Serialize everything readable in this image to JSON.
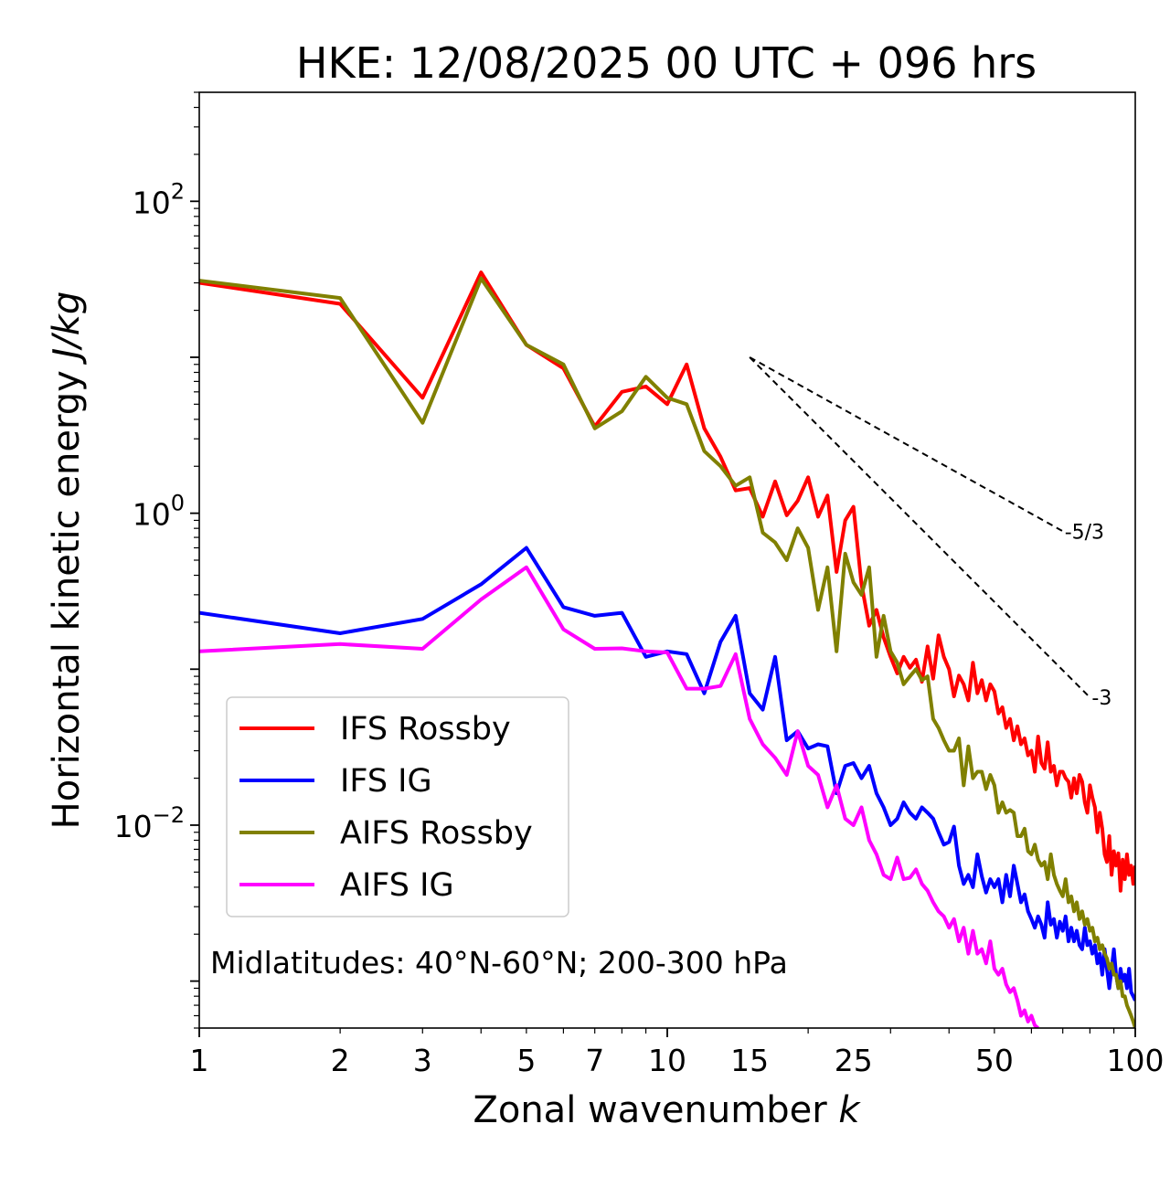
{
  "chart_data": {
    "type": "line",
    "title": "HKE: 12/08/2025 00 UTC + 096 hrs",
    "xlabel": "Zonal wavenumber",
    "xlabel_var": "k",
    "ylabel": "Horizontal kinetic energy",
    "ylabel_units": "J/kg",
    "xscale": "log",
    "yscale": "log",
    "xlim": [
      1,
      100
    ],
    "ylim": [
      0.0005,
      500
    ],
    "x_ticks": [
      1,
      2,
      3,
      5,
      7,
      10,
      15,
      25,
      50,
      100
    ],
    "x_tick_labels": [
      "1",
      "2",
      "3",
      "5",
      "7",
      "10",
      "15",
      "25",
      "50",
      "100"
    ],
    "y_ticks": [
      {
        "value": 100,
        "base": "10",
        "exp": "2"
      },
      {
        "value": 1,
        "base": "10",
        "exp": "0"
      },
      {
        "value": 0.01,
        "base": "10",
        "exp": "−2"
      }
    ],
    "legend": {
      "placement": "lower-left",
      "entries": [
        "IFS Rossby",
        "IFS IG",
        "AIFS Rossby",
        "AIFS IG"
      ]
    },
    "region_text": "Midlatitudes: 40°N-60°N; 200-300 hPa",
    "reference_slopes": [
      {
        "label": "-5/3",
        "slope": -1.6667,
        "x_start": 15,
        "x_end": 70,
        "y_start": 10
      },
      {
        "label": "-3",
        "slope": -3,
        "x_start": 15,
        "x_end": 80,
        "y_start": 10
      }
    ],
    "series": [
      {
        "name": "IFS Rossby",
        "color": "#ff0000",
        "x": [
          1,
          2,
          3,
          4,
          5,
          6,
          7,
          8,
          9,
          10,
          11,
          12,
          13,
          14,
          15,
          16,
          17,
          18,
          19,
          20,
          21,
          22,
          23,
          24,
          25,
          26,
          27,
          28,
          29,
          30,
          31,
          32,
          33,
          34,
          35,
          36,
          37,
          38,
          39,
          40,
          41,
          42,
          43,
          44,
          45,
          46,
          47,
          48,
          49,
          50,
          51,
          52,
          53,
          54,
          55,
          56,
          57,
          58,
          59,
          60,
          61,
          62,
          63,
          64,
          65,
          66,
          67,
          68,
          69,
          70,
          71,
          72,
          73,
          74,
          75,
          76,
          77,
          78,
          79,
          80,
          81,
          82,
          83,
          84,
          85,
          86,
          87,
          88,
          89,
          90,
          91,
          92,
          93,
          94,
          95,
          96,
          97,
          98,
          99,
          100
        ],
        "values": [
          30,
          22,
          5.5,
          35,
          12,
          8.5,
          3.6,
          6,
          6.5,
          5,
          9,
          3.5,
          2.3,
          1.4,
          1.45,
          0.95,
          1.6,
          0.97,
          1.2,
          1.7,
          0.95,
          1.3,
          0.42,
          0.9,
          1.1,
          0.35,
          0.19,
          0.24,
          0.16,
          0.12,
          0.094,
          0.12,
          0.102,
          0.115,
          0.083,
          0.14,
          0.087,
          0.165,
          0.12,
          0.1,
          0.067,
          0.091,
          0.08,
          0.063,
          0.11,
          0.07,
          0.085,
          0.063,
          0.08,
          0.072,
          0.052,
          0.057,
          0.042,
          0.048,
          0.035,
          0.043,
          0.033,
          0.036,
          0.028,
          0.03,
          0.022,
          0.037,
          0.025,
          0.023,
          0.034,
          0.022,
          0.024,
          0.018,
          0.022,
          0.022,
          0.02,
          0.019,
          0.015,
          0.02,
          0.016,
          0.021,
          0.019,
          0.014,
          0.012,
          0.018,
          0.015,
          0.013,
          0.009,
          0.012,
          0.0095,
          0.0065,
          0.0058,
          0.0085,
          0.0048,
          0.0068,
          0.0055,
          0.0066,
          0.0038,
          0.006,
          0.0045,
          0.0065,
          0.0048,
          0.0055,
          0.0042,
          0.0055
        ]
      },
      {
        "name": "IFS IG",
        "color": "#0000ff",
        "x": [
          1,
          2,
          3,
          4,
          5,
          6,
          7,
          8,
          9,
          10,
          11,
          12,
          13,
          14,
          15,
          16,
          17,
          18,
          19,
          20,
          21,
          22,
          23,
          24,
          25,
          26,
          27,
          28,
          29,
          30,
          31,
          32,
          33,
          34,
          35,
          36,
          37,
          38,
          39,
          40,
          41,
          42,
          43,
          44,
          45,
          46,
          47,
          48,
          49,
          50,
          51,
          52,
          53,
          54,
          55,
          56,
          57,
          58,
          59,
          60,
          61,
          62,
          63,
          64,
          65,
          66,
          67,
          68,
          69,
          70,
          71,
          72,
          73,
          74,
          75,
          76,
          77,
          78,
          79,
          80,
          81,
          82,
          83,
          84,
          85,
          86,
          87,
          88,
          89,
          90,
          91,
          92,
          93,
          94,
          95,
          96,
          97,
          98,
          99,
          100
        ],
        "values": [
          0.23,
          0.17,
          0.21,
          0.35,
          0.6,
          0.25,
          0.22,
          0.23,
          0.12,
          0.13,
          0.125,
          0.07,
          0.15,
          0.22,
          0.07,
          0.055,
          0.12,
          0.035,
          0.04,
          0.031,
          0.033,
          0.032,
          0.016,
          0.024,
          0.025,
          0.02,
          0.024,
          0.016,
          0.013,
          0.01,
          0.011,
          0.014,
          0.012,
          0.011,
          0.013,
          0.012,
          0.011,
          0.009,
          0.0075,
          0.0078,
          0.0098,
          0.0055,
          0.0042,
          0.0048,
          0.004,
          0.0065,
          0.0047,
          0.0037,
          0.0045,
          0.004,
          0.0045,
          0.0032,
          0.0048,
          0.0035,
          0.0055,
          0.0042,
          0.0032,
          0.0036,
          0.0028,
          0.0025,
          0.0022,
          0.0026,
          0.0023,
          0.0019,
          0.0032,
          0.0023,
          0.0025,
          0.0019,
          0.0024,
          0.0021,
          0.0026,
          0.0018,
          0.0022,
          0.0018,
          0.0021,
          0.0017,
          0.0016,
          0.0022,
          0.0017,
          0.0018,
          0.0015,
          0.0017,
          0.0013,
          0.0015,
          0.0011,
          0.0016,
          0.0012,
          0.0009,
          0.0012,
          0.0016,
          0.0011,
          0.0009,
          0.0012,
          0.001,
          0.0011,
          0.0009,
          0.0012,
          0.00085,
          0.0008,
          0.00075
        ]
      },
      {
        "name": "AIFS Rossby",
        "color": "#808000",
        "x": [
          1,
          2,
          3,
          4,
          5,
          6,
          7,
          8,
          9,
          10,
          11,
          12,
          13,
          14,
          15,
          16,
          17,
          18,
          19,
          20,
          21,
          22,
          23,
          24,
          25,
          26,
          27,
          28,
          29,
          30,
          31,
          32,
          33,
          34,
          35,
          36,
          37,
          38,
          39,
          40,
          41,
          42,
          43,
          44,
          45,
          46,
          47,
          48,
          49,
          50,
          51,
          52,
          53,
          54,
          55,
          56,
          57,
          58,
          59,
          60,
          61,
          62,
          63,
          64,
          65,
          66,
          67,
          68,
          69,
          70,
          71,
          72,
          73,
          74,
          75,
          76,
          77,
          78,
          79,
          80,
          81,
          82,
          83,
          84,
          85,
          86,
          87,
          88,
          89,
          90,
          91,
          92,
          93,
          94,
          95,
          96,
          97,
          98,
          99,
          100
        ],
        "values": [
          31,
          24,
          3.8,
          32,
          12,
          9,
          3.5,
          4.5,
          7.5,
          5.5,
          5,
          2.5,
          2,
          1.5,
          1.7,
          0.75,
          0.65,
          0.5,
          0.8,
          0.6,
          0.24,
          0.45,
          0.13,
          0.55,
          0.36,
          0.3,
          0.45,
          0.12,
          0.22,
          0.13,
          0.11,
          0.08,
          0.09,
          0.1,
          0.085,
          0.09,
          0.048,
          0.042,
          0.035,
          0.03,
          0.03,
          0.036,
          0.018,
          0.032,
          0.02,
          0.022,
          0.022,
          0.017,
          0.021,
          0.018,
          0.012,
          0.014,
          0.012,
          0.0125,
          0.012,
          0.0085,
          0.0085,
          0.0095,
          0.0068,
          0.0065,
          0.0075,
          0.006,
          0.0055,
          0.0058,
          0.0045,
          0.0065,
          0.0048,
          0.0042,
          0.0038,
          0.0035,
          0.0045,
          0.0032,
          0.0035,
          0.0028,
          0.0032,
          0.0025,
          0.0028,
          0.0023,
          0.0025,
          0.0021,
          0.0022,
          0.0018,
          0.0019,
          0.0016,
          0.0017,
          0.0015,
          0.0014,
          0.0012,
          0.0013,
          0.0011,
          0.0011,
          0.0009,
          0.001,
          0.0008,
          0.0008,
          0.0007,
          0.00065,
          0.0006,
          0.00055,
          0.0005
        ]
      },
      {
        "name": "AIFS IG",
        "color": "#ff00ff",
        "x": [
          1,
          2,
          3,
          4,
          5,
          6,
          7,
          8,
          9,
          10,
          11,
          12,
          13,
          14,
          15,
          16,
          17,
          18,
          19,
          20,
          21,
          22,
          23,
          24,
          25,
          26,
          27,
          28,
          29,
          30,
          31,
          32,
          33,
          34,
          35,
          36,
          37,
          38,
          39,
          40,
          41,
          42,
          43,
          44,
          45,
          46,
          47,
          48,
          49,
          50,
          51,
          52,
          53,
          54,
          55,
          56,
          57,
          58,
          59,
          60,
          61,
          62
        ],
        "values": [
          0.13,
          0.145,
          0.135,
          0.28,
          0.45,
          0.18,
          0.135,
          0.136,
          0.13,
          0.128,
          0.075,
          0.075,
          0.078,
          0.125,
          0.048,
          0.033,
          0.027,
          0.021,
          0.04,
          0.024,
          0.021,
          0.013,
          0.018,
          0.011,
          0.01,
          0.013,
          0.008,
          0.0065,
          0.0048,
          0.0045,
          0.0062,
          0.0045,
          0.0046,
          0.0052,
          0.0042,
          0.0038,
          0.0032,
          0.0028,
          0.0026,
          0.0022,
          0.0025,
          0.0018,
          0.0022,
          0.0015,
          0.0021,
          0.0015,
          0.0016,
          0.0013,
          0.0018,
          0.0012,
          0.0011,
          0.0012,
          0.00095,
          0.00085,
          0.0009,
          0.00075,
          0.0006,
          0.00065,
          0.00055,
          0.0006,
          0.00052,
          0.0005
        ]
      }
    ]
  }
}
